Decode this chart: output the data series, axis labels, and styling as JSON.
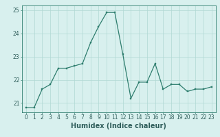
{
  "x": [
    0,
    1,
    2,
    3,
    4,
    5,
    6,
    7,
    8,
    9,
    10,
    11,
    12,
    13,
    14,
    15,
    16,
    17,
    18,
    19,
    20,
    21,
    22,
    23
  ],
  "y": [
    20.8,
    20.8,
    21.6,
    21.8,
    22.5,
    22.5,
    22.6,
    22.7,
    23.6,
    24.3,
    24.9,
    24.9,
    23.1,
    21.2,
    21.9,
    21.9,
    22.7,
    21.6,
    21.8,
    21.8,
    21.5,
    21.6,
    21.6,
    21.7
  ],
  "line_color": "#2e7d6e",
  "marker": "s",
  "marker_size": 1.8,
  "line_width": 0.9,
  "xlabel": "Humidex (Indice chaleur)",
  "xlabel_fontsize": 7,
  "xlabel_color": "#2e5d5a",
  "bg_color": "#d8f0ee",
  "grid_color": "#b0d8d4",
  "tick_color": "#2e5d5a",
  "spine_color": "#2e7d6e",
  "xlim": [
    -0.5,
    23.5
  ],
  "ylim": [
    20.6,
    25.2
  ],
  "yticks": [
    21,
    22,
    23,
    24,
    25
  ],
  "xticks": [
    0,
    1,
    2,
    3,
    4,
    5,
    6,
    7,
    8,
    9,
    10,
    11,
    12,
    13,
    14,
    15,
    16,
    17,
    18,
    19,
    20,
    21,
    22,
    23
  ],
  "tick_fontsize": 5.5,
  "xlabel_fontweight": "bold"
}
